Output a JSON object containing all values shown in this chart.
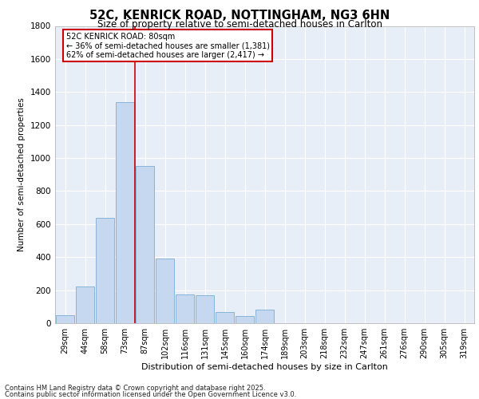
{
  "title1": "52C, KENRICK ROAD, NOTTINGHAM, NG3 6HN",
  "title2": "Size of property relative to semi-detached houses in Carlton",
  "xlabel": "Distribution of semi-detached houses by size in Carlton",
  "ylabel": "Number of semi-detached properties",
  "bar_color": "#c5d8f0",
  "bar_edge_color": "#7aadd4",
  "categories": [
    "29sqm",
    "44sqm",
    "58sqm",
    "73sqm",
    "87sqm",
    "102sqm",
    "116sqm",
    "131sqm",
    "145sqm",
    "160sqm",
    "174sqm",
    "189sqm",
    "203sqm",
    "218sqm",
    "232sqm",
    "247sqm",
    "261sqm",
    "276sqm",
    "290sqm",
    "305sqm",
    "319sqm"
  ],
  "values": [
    50,
    220,
    640,
    1340,
    950,
    390,
    175,
    170,
    70,
    45,
    80,
    0,
    0,
    0,
    0,
    0,
    0,
    0,
    0,
    0,
    0
  ],
  "ylim": [
    0,
    1800
  ],
  "yticks": [
    0,
    200,
    400,
    600,
    800,
    1000,
    1200,
    1400,
    1600,
    1800
  ],
  "annotation_title": "52C KENRICK ROAD: 80sqm",
  "annotation_line1": "← 36% of semi-detached houses are smaller (1,381)",
  "annotation_line2": "62% of semi-detached houses are larger (2,417) →",
  "footer1": "Contains HM Land Registry data © Crown copyright and database right 2025.",
  "footer2": "Contains public sector information licensed under the Open Government Licence v3.0.",
  "bg_color": "#e8eef8",
  "annotation_box_color": "#ffffff",
  "annotation_box_edge": "#cc0000",
  "vline_color": "#cc0000",
  "grid_color": "#ffffff",
  "vline_x_index": 3.5
}
